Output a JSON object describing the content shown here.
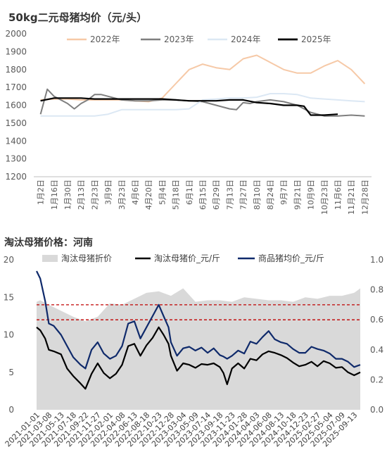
{
  "chart_data": [
    {
      "type": "line",
      "title": "50kg二元母猪均价（元/头）",
      "ylim": [
        1200,
        2000
      ],
      "yticks": [
        1200,
        1300,
        1400,
        1500,
        1600,
        1700,
        1800,
        1900,
        2000
      ],
      "x_tick_labels": [
        "1月2日",
        "1月16日",
        "1月30日",
        "2月13日",
        "2月23日",
        "3月9日",
        "3月23日",
        "4月6日",
        "4月20日",
        "5月4日",
        "5月18日",
        "6月1日",
        "6月15日",
        "6月29日",
        "7月13日",
        "7月27日",
        "8月10日",
        "8月24日",
        "9月7日",
        "9月21日",
        "10月9日",
        "10月23日",
        "11月6日",
        "11月21日",
        "12月28日"
      ],
      "legend_position": "top",
      "series": [
        {
          "name": "2022年",
          "color": "#f6c9a7",
          "stroke_width": 2,
          "x": [
            0,
            1,
            2,
            3,
            4,
            5,
            6,
            7,
            8,
            9,
            10,
            11,
            12,
            13,
            14,
            15,
            16,
            17,
            18,
            19,
            20,
            21,
            22,
            23,
            24
          ],
          "values": [
            1630,
            1635,
            1635,
            1630,
            1630,
            1630,
            1630,
            1625,
            1620,
            1640,
            1720,
            1800,
            1830,
            1810,
            1800,
            1860,
            1880,
            1840,
            1800,
            1780,
            1780,
            1820,
            1850,
            1800,
            1720
          ]
        },
        {
          "name": "2023年",
          "color": "#7f7f7f",
          "stroke_width": 2,
          "x": [
            0,
            0.5,
            1,
            1.5,
            2,
            2.5,
            3,
            3.5,
            4,
            4.5,
            5,
            6,
            7,
            8,
            9,
            10,
            11,
            12,
            13,
            14,
            14.5,
            15,
            15.5,
            16,
            17,
            18,
            19,
            20,
            21,
            22,
            23,
            24
          ],
          "values": [
            1550,
            1690,
            1650,
            1630,
            1610,
            1580,
            1610,
            1630,
            1660,
            1660,
            1650,
            1630,
            1625,
            1625,
            1630,
            1630,
            1625,
            1620,
            1600,
            1580,
            1575,
            1615,
            1610,
            1620,
            1630,
            1620,
            1600,
            1560,
            1540,
            1540,
            1545,
            1540
          ]
        },
        {
          "name": "2024年",
          "color": "#dce8f4",
          "stroke_width": 2,
          "x": [
            0,
            1,
            2,
            3,
            4,
            5,
            6,
            7,
            8,
            9,
            10,
            11,
            12,
            13,
            14,
            15,
            16,
            17,
            18,
            19,
            20,
            21,
            22,
            23,
            24
          ],
          "values": [
            1540,
            1540,
            1540,
            1540,
            1540,
            1550,
            1575,
            1575,
            1575,
            1575,
            1575,
            1580,
            1630,
            1635,
            1640,
            1640,
            1645,
            1665,
            1665,
            1660,
            1640,
            1635,
            1630,
            1625,
            1620
          ]
        },
        {
          "name": "2025年",
          "color": "#000000",
          "stroke_width": 2.2,
          "x": [
            0,
            1,
            2,
            3,
            4,
            5,
            6,
            7,
            8,
            9,
            10,
            11,
            12,
            13,
            14,
            15,
            16,
            17,
            18,
            19,
            19.5,
            20,
            21,
            22
          ],
          "values": [
            1625,
            1640,
            1640,
            1640,
            1635,
            1635,
            1635,
            1635,
            1635,
            1635,
            1630,
            1625,
            1625,
            1625,
            1630,
            1630,
            1615,
            1610,
            1600,
            1600,
            1595,
            1545,
            1545,
            1550
          ]
        }
      ]
    },
    {
      "type": "line",
      "title": "淘汰母猪价格：河南",
      "ylim_left": [
        0,
        20
      ],
      "yticks_left": [
        0,
        5,
        10,
        15,
        20
      ],
      "ylim_right": [
        0,
        1
      ],
      "yticks_right": [
        "0.0",
        "0.2",
        "0.4",
        "0.6",
        "0.8",
        "1.0"
      ],
      "x_tick_labels": [
        "2021-01-01",
        "2021-03-08",
        "2021-05-13",
        "2021-07-18",
        "2021-09-22",
        "2021-11-27",
        "2022-02-01",
        "2022-04-08",
        "2022-06-13",
        "2022-08-18",
        "2022-10-23",
        "2022-12-28",
        "2023-03-04",
        "2023-05-09",
        "2023-07-14",
        "2023-09-18",
        "2023-11-23",
        "2024-01-28",
        "2024-04-03",
        "2024-06-08",
        "2024-08-13",
        "2024-10-18",
        "2024-12-23",
        "2025-02-27",
        "2025-05-04",
        "2025-07-09",
        "2025-09-13"
      ],
      "reference_lines_left": [
        14,
        12
      ],
      "reference_line_color": "#c00000",
      "legend_position": "top",
      "series": [
        {
          "name": "淘汰母猪折价",
          "axis": "right",
          "style": "area",
          "color": "#d9d9d9",
          "x": [
            0,
            0.3,
            1,
            2,
            3,
            4,
            5,
            6,
            7,
            8,
            9,
            10,
            11,
            12,
            13,
            14,
            15,
            16,
            17,
            18,
            19,
            20,
            21,
            22,
            23,
            24,
            25,
            26,
            26.5
          ],
          "values": [
            0.72,
            0.73,
            0.7,
            0.66,
            0.62,
            0.59,
            0.62,
            0.71,
            0.7,
            0.74,
            0.78,
            0.79,
            0.76,
            0.81,
            0.72,
            0.73,
            0.73,
            0.72,
            0.75,
            0.74,
            0.73,
            0.73,
            0.72,
            0.75,
            0.74,
            0.76,
            0.76,
            0.78,
            0.81
          ]
        },
        {
          "name": "淘汰母猪价_元/斤",
          "axis": "left",
          "style": "line",
          "color": "#000000",
          "x": [
            0,
            0.3,
            0.7,
            1,
            1.4,
            2,
            2.5,
            3,
            3.6,
            4,
            4.5,
            5,
            5.5,
            6,
            6.5,
            7,
            7.5,
            8,
            8.5,
            9,
            9.5,
            10,
            10.4,
            10.8,
            11,
            11.5,
            12,
            12.5,
            13,
            13.5,
            14,
            14.5,
            15,
            15.3,
            15.6,
            16,
            16.5,
            17,
            17.5,
            18,
            18.5,
            19,
            19.5,
            20,
            20.5,
            21,
            21.5,
            22,
            22.5,
            23,
            23.5,
            24,
            24.5,
            25,
            25.5,
            26,
            26.5
          ],
          "values": [
            11,
            10.6,
            9.5,
            8,
            7.8,
            7.4,
            5.5,
            4.5,
            3.5,
            2.8,
            4.8,
            6.2,
            4.9,
            4.2,
            4.8,
            6,
            8.5,
            8.8,
            7.2,
            8.6,
            9.6,
            11,
            10,
            8.8,
            7.2,
            5.2,
            6.2,
            6,
            5.6,
            6.1,
            6,
            6.2,
            5.7,
            4.9,
            3.4,
            5.5,
            6.2,
            5.5,
            6.8,
            6.6,
            7.4,
            7.8,
            7.6,
            7.3,
            6.9,
            6.3,
            5.8,
            6,
            6.4,
            5.8,
            6.5,
            6.2,
            5.6,
            5.7,
            5,
            4.6,
            5
          ]
        },
        {
          "name": "商品猪均价_元/斤",
          "axis": "left",
          "style": "line",
          "color": "#0f2a6b",
          "x": [
            0,
            0.3,
            0.7,
            1,
            1.4,
            2,
            2.5,
            3,
            3.6,
            4,
            4.5,
            5,
            5.5,
            6,
            6.5,
            7,
            7.5,
            8,
            8.5,
            9,
            9.5,
            10,
            10.4,
            10.8,
            11,
            11.5,
            12,
            12.5,
            13,
            13.5,
            14,
            14.5,
            15,
            15.3,
            15.6,
            16,
            16.5,
            17,
            17.5,
            18,
            18.5,
            19,
            19.5,
            20,
            20.5,
            21,
            21.5,
            22,
            22.5,
            23,
            23.5,
            24,
            24.5,
            25,
            25.5,
            26,
            26.5
          ],
          "values": [
            18.5,
            17.5,
            14.5,
            11.5,
            11.2,
            10,
            8.5,
            7,
            6,
            5.5,
            8,
            9,
            7.5,
            6.8,
            7.2,
            8.5,
            11.5,
            11.8,
            9.5,
            11,
            12.5,
            14,
            12.5,
            11,
            9,
            7.2,
            8.2,
            8.4,
            7.9,
            8.3,
            7.6,
            8.2,
            7.3,
            7.1,
            6.8,
            7.2,
            7.9,
            7.5,
            9.1,
            8.8,
            9.7,
            10.5,
            9.4,
            9,
            8.8,
            8.1,
            7.6,
            7.6,
            8.4,
            8.1,
            7.9,
            7.5,
            6.8,
            6.8,
            6.4,
            5.7,
            6
          ]
        }
      ]
    }
  ]
}
